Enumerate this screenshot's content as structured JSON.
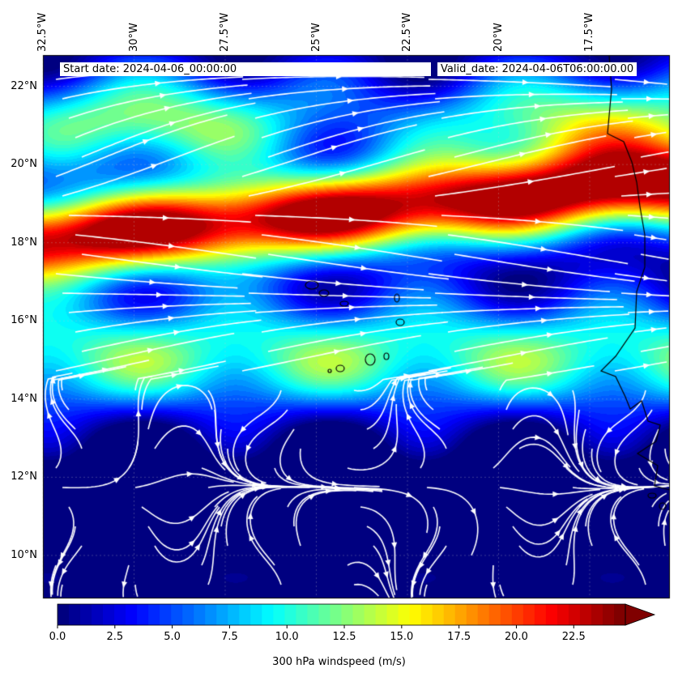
{
  "map": {
    "start_date": "Start date: 2024-04-06_00:00:00",
    "valid_date": "Valid_date: 2024-04-06T06:00:00.00",
    "lon_labels": [
      "32.5°W",
      "30°W",
      "27.5°W",
      "25°W",
      "22.5°W",
      "20°W",
      "17.5°W"
    ],
    "lat_labels": [
      "22°N",
      "20°N",
      "18°N",
      "16°N",
      "14°N",
      "12°N",
      "10°N"
    ],
    "extent": {
      "lon_min": -32.5,
      "lon_max": -15.3,
      "lat_min": 8.9,
      "lat_max": 22.8
    },
    "field": "300 hPa windspeed",
    "streamline_color": "#ffffff",
    "coastline_color": "#000000"
  },
  "colorbar": {
    "title": "300 hPa windspeed (m/s)",
    "ticks": [
      "0.0",
      "2.5",
      "5.0",
      "7.5",
      "10.0",
      "12.5",
      "15.0",
      "17.5",
      "20.0",
      "22.5"
    ],
    "vmin": 0,
    "vmax": 25,
    "extend": "max",
    "colormap": "jet"
  }
}
